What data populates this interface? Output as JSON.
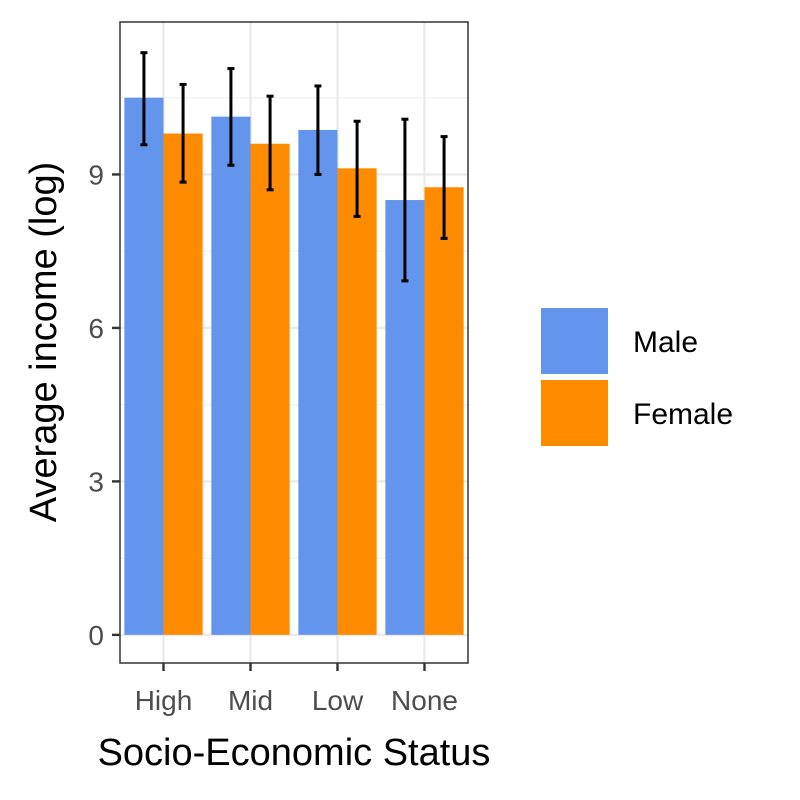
{
  "chart_data": {
    "type": "bar",
    "title": "",
    "xlabel": "Socio-Economic Status",
    "ylabel": "Average income (log)",
    "categories": [
      "High",
      "Mid",
      "Low",
      "None"
    ],
    "series": [
      {
        "name": "Male",
        "color": "#6495ED",
        "values": [
          10.5,
          10.13,
          9.87,
          8.5
        ],
        "err_low": [
          9.58,
          9.18,
          9.0,
          6.92
        ],
        "err_high": [
          11.38,
          11.07,
          10.73,
          10.08
        ]
      },
      {
        "name": "Female",
        "color": "#FF8C00",
        "values": [
          9.8,
          9.6,
          9.12,
          8.75
        ],
        "err_low": [
          8.85,
          8.7,
          8.18,
          7.75
        ],
        "err_high": [
          10.76,
          10.53,
          10.04,
          9.74
        ]
      }
    ],
    "yticks": [
      0,
      3,
      6,
      9
    ],
    "ylim": [
      -0.55,
      11.98
    ],
    "grid": true,
    "legend_position": "right"
  }
}
